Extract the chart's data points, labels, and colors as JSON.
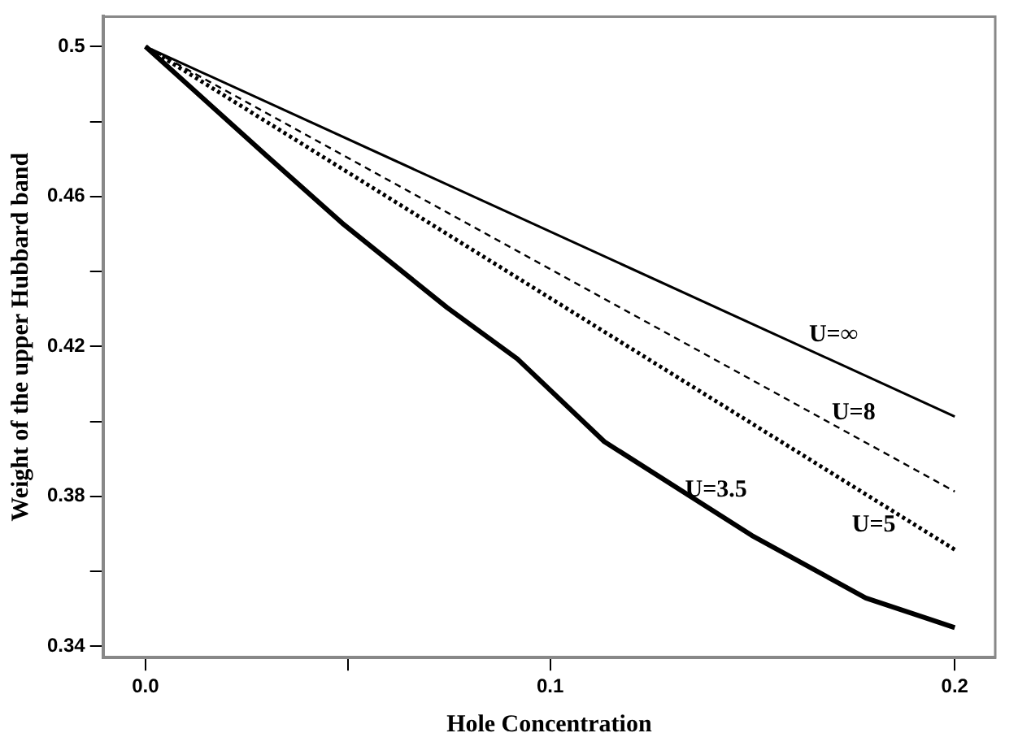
{
  "chart_data": {
    "type": "line",
    "xlabel": "Hole Concentration",
    "ylabel": "Weight of the upper Hubbard band",
    "xlim": [
      -0.0105,
      0.21
    ],
    "xticks": [
      {
        "value": 0,
        "label": "0.0"
      },
      {
        "value": 0.05,
        "label": null
      },
      0.1,
      0.2
    ],
    "ylim": [
      0.337,
      0.508
    ],
    "yticks": [
      0.34,
      {
        "value": 0.36,
        "label": null
      },
      0.38,
      {
        "value": 0.4,
        "label": null
      },
      0.42,
      {
        "value": 0.44,
        "label": null
      },
      0.46,
      {
        "value": 0.48,
        "label": null
      },
      0.5
    ],
    "grid": false,
    "legend": false,
    "marker": "none",
    "series": [
      {
        "name": "U=∞",
        "color": "#000000",
        "line_style": "solid",
        "x": [
          0,
          0.2
        ],
        "values": [
          0.5,
          0.4013
        ]
      },
      {
        "name": "U=8",
        "color": "#000000",
        "line_style": "dashed",
        "x": [
          0,
          0.2
        ],
        "values": [
          0.5,
          0.3813
        ]
      },
      {
        "name": "U=5",
        "color": "#000000",
        "line_style": "dotted",
        "x": [
          0,
          0.2
        ],
        "values": [
          0.5,
          0.3658
        ]
      },
      {
        "name": "U=3.5",
        "color": "#000000",
        "line_style": "solid",
        "x": [
          0,
          0.03,
          0.0486,
          0.0745,
          0.0919,
          0.1134,
          0.1498,
          0.178,
          0.2
        ],
        "values": [
          0.5,
          0.4708,
          0.4529,
          0.4304,
          0.4167,
          0.3946,
          0.3696,
          0.3529,
          0.345
        ]
      }
    ]
  }
}
